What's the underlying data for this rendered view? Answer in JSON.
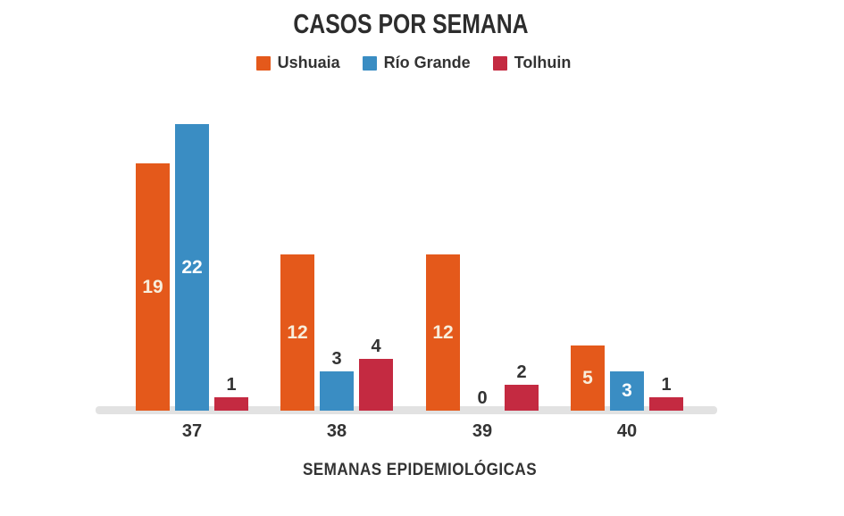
{
  "chart_data": {
    "type": "bar",
    "title": "CASOS POR SEMANA",
    "xlabel": "SEMANAS EPIDEMIOLÓGICAS",
    "ylabel": "",
    "categories": [
      "37",
      "38",
      "39",
      "40"
    ],
    "series": [
      {
        "name": "Ushuaia",
        "color": "#E4591B",
        "inside_label_color": "#F8EEDC",
        "values": [
          19,
          12,
          12,
          5
        ],
        "label_inside": [
          true,
          true,
          true,
          true
        ]
      },
      {
        "name": "Río Grande",
        "color": "#3A8DC3",
        "inside_label_color": "#FFFFFF",
        "values": [
          22,
          3,
          0,
          3
        ],
        "label_inside": [
          true,
          false,
          false,
          true
        ]
      },
      {
        "name": "Tolhuin",
        "color": "#C42A41",
        "inside_label_color": "#FFFFFF",
        "values": [
          1,
          4,
          2,
          1
        ],
        "label_inside": [
          false,
          false,
          false,
          false
        ]
      }
    ],
    "ylim": [
      0,
      22
    ],
    "grid": false,
    "legend_position": "top",
    "value_labels": true,
    "axis_band_color": "#E2E2E2",
    "text_color": "#333333"
  }
}
